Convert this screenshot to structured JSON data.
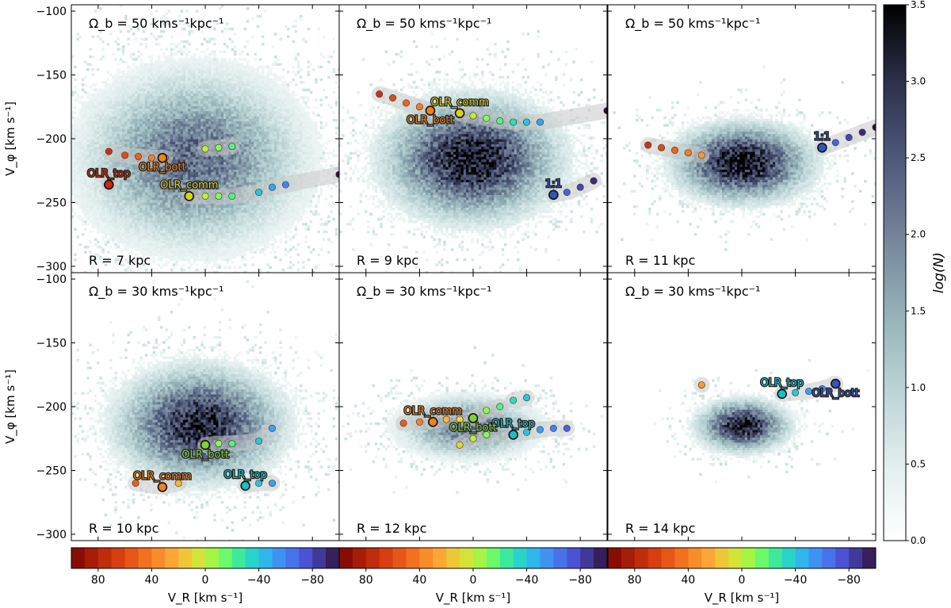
{
  "chart_data": {
    "type": "scatter",
    "layout": "2x3 grid of 2D velocity histograms with resonance-tracking markers",
    "x_axis": {
      "label": "V_R [km s⁻¹]",
      "range": [
        100,
        -100
      ],
      "ticks": [
        80,
        40,
        0,
        -40,
        -80
      ],
      "tick_labels": [
        "80",
        "40",
        "0",
        "−40",
        "−80"
      ]
    },
    "y_axis": {
      "label": "V_φ [km s⁻¹]",
      "range": [
        -95,
        -305
      ],
      "ticks": [
        -300,
        -250,
        -200,
        -150,
        -100
      ],
      "tick_labels": [
        "−300",
        "−250",
        "−200",
        "−150",
        "−100"
      ]
    },
    "colorbar": {
      "label": "log(N)",
      "range": [
        0,
        3.5
      ],
      "ticks": [
        0.0,
        0.5,
        1.0,
        1.5,
        2.0,
        2.5,
        3.0,
        3.5
      ],
      "tick_labels": [
        "0.0",
        "0.5",
        "1.0",
        "1.5",
        "2.0",
        "2.5",
        "3.0",
        "3.5"
      ],
      "colormap": "bone_r"
    },
    "vr_colorbar": {
      "label": "V_R [km s⁻¹]",
      "range": [
        100,
        -100
      ],
      "tick_labels": [
        "80",
        "40",
        "0",
        "−40",
        "−80"
      ],
      "colormap": "turbo"
    },
    "panels": [
      {
        "title": "Ω_b = 50 kms⁻¹kpc⁻¹",
        "radius_label": "R = 7 kpc",
        "cloud": {
          "vr_center": 10,
          "vphi_center": -215,
          "vr_sigma": 48,
          "vphi_sigma": 40,
          "peak_log_n": 2.3
        },
        "tracks": [
          {
            "vr": [
              72,
              60,
              50,
              40,
              30
            ],
            "vphi": [
              -210,
              -213,
              -214,
              -215,
              -215
            ]
          },
          {
            "vr": [
              12,
              0,
              -10,
              -20,
              -40,
              -50,
              -60,
              -100
            ],
            "vphi": [
              -245,
              -245,
              -245,
              -245,
              -242,
              -238,
              -236,
              -228
            ]
          },
          {
            "vr": [
              72
            ],
            "vphi": [
              -236
            ]
          },
          {
            "vr": [
              0,
              -10,
              -20
            ],
            "vphi": [
              -208,
              -207,
              -206
            ]
          }
        ],
        "labels": [
          {
            "text": "OLR_top",
            "vr": 72,
            "vphi": -236,
            "color": "#c72c0c"
          },
          {
            "text": "OLR_comm",
            "vr": 12,
            "vphi": -245,
            "color": "#d7d21a"
          },
          {
            "text": "OLR_bott",
            "vr": 32,
            "vphi": -215,
            "color": "#f08218"
          }
        ]
      },
      {
        "title": "Ω_b = 50 kms⁻¹kpc⁻¹",
        "radius_label": "R = 9 kpc",
        "cloud": {
          "vr_center": 2,
          "vphi_center": -215,
          "vr_sigma": 38,
          "vphi_sigma": 28,
          "peak_log_n": 3.4
        },
        "tracks": [
          {
            "vr": [
              70,
              60,
              50,
              40,
              32
            ],
            "vphi": [
              -165,
              -168,
              -172,
              -175,
              -178
            ]
          },
          {
            "vr": [
              10,
              0,
              -10,
              -20,
              -30,
              -40,
              -50,
              -100
            ],
            "vphi": [
              -180,
              -182,
              -184,
              -186,
              -187,
              -187,
              -187,
              -178
            ]
          },
          {
            "vr": [
              -60,
              -70,
              -80,
              -90
            ],
            "vphi": [
              -244,
              -242,
              -238,
              -233
            ]
          }
        ],
        "labels": [
          {
            "text": "1:1",
            "vr": -60,
            "vphi": -244,
            "color": "#3355bb"
          },
          {
            "text": "OLR_comm",
            "vr": 10,
            "vphi": -180,
            "color": "#d7d21a"
          },
          {
            "text": "OLR_bott",
            "vr": 32,
            "vphi": -178,
            "color": "#f08218"
          }
        ]
      },
      {
        "title": "Ω_b = 50 kms⁻¹kpc⁻¹",
        "radius_label": "R = 11 kpc",
        "cloud": {
          "vr_center": 0,
          "vphi_center": -218,
          "vr_sigma": 30,
          "vphi_sigma": 18,
          "peak_log_n": 3.5
        },
        "tracks": [
          {
            "vr": [
              70,
              60,
              50,
              40,
              30
            ],
            "vphi": [
              -205,
              -207,
              -209,
              -211,
              -213
            ]
          },
          {
            "vr": [
              -60,
              -70,
              -80,
              -90,
              -100
            ],
            "vphi": [
              -207,
              -203,
              -199,
              -195,
              -191
            ]
          }
        ],
        "labels": [
          {
            "text": "1:1",
            "vr": -60,
            "vphi": -207,
            "color": "#3355bb"
          }
        ]
      },
      {
        "title": "Ω_b = 30 kms⁻¹kpc⁻¹",
        "radius_label": "R = 10 kpc",
        "cloud": {
          "vr_center": 5,
          "vphi_center": -213,
          "vr_sigma": 36,
          "vphi_sigma": 26,
          "peak_log_n": 3.2
        },
        "tracks": [
          {
            "vr": [
              52,
              32,
              20
            ],
            "vphi": [
              -260,
              -263,
              -260
            ]
          },
          {
            "vr": [
              -30,
              -40,
              -50
            ],
            "vphi": [
              -262,
              -260,
              -260
            ]
          },
          {
            "vr": [
              0,
              -10,
              -20,
              -40,
              -50
            ],
            "vphi": [
              -230,
              -229,
              -229,
              -227,
              -217
            ]
          }
        ],
        "labels": [
          {
            "text": "OLR_comm",
            "vr": 32,
            "vphi": -263,
            "color": "#f08218"
          },
          {
            "text": "OLR_top",
            "vr": -30,
            "vphi": -262,
            "color": "#18c0c8"
          },
          {
            "text": "OLR_bott",
            "vr": 0,
            "vphi": -230,
            "color": "#7cd43a"
          }
        ]
      },
      {
        "title": "Ω_b = 30 kms⁻¹kpc⁻¹",
        "radius_label": "R = 12 kpc",
        "cloud": {
          "vr_center": 5,
          "vphi_center": -215,
          "vr_sigma": 30,
          "vphi_sigma": 14,
          "peak_log_n": 2.2
        },
        "tracks": [
          {
            "vr": [
              52,
              40,
              30,
              20,
              10
            ],
            "vphi": [
              -213,
              -212,
              -211,
              -210,
              -210
            ]
          },
          {
            "vr": [
              0,
              -10,
              -20
            ],
            "vphi": [
              -209,
              -203,
              -200
            ]
          },
          {
            "vr": [
              10,
              0,
              -10,
              -30,
              -40,
              -50,
              -60,
              -70
            ],
            "vphi": [
              -230,
              -225,
              -222,
              -222,
              -220,
              -218,
              -217,
              -217
            ]
          },
          {
            "vr": [
              -30,
              -40
            ],
            "vphi": [
              -195,
              -193
            ]
          }
        ],
        "labels": [
          {
            "text": "OLR_comm",
            "vr": 30,
            "vphi": -212,
            "color": "#f08218"
          },
          {
            "text": "OLR_top",
            "vr": -30,
            "vphi": -222,
            "color": "#18c0c8"
          },
          {
            "text": "OLR_bott",
            "vr": 0,
            "vphi": -209,
            "color": "#7cd43a"
          }
        ]
      },
      {
        "title": "Ω_b = 30 kms⁻¹kpc⁻¹",
        "radius_label": "R = 14 kpc",
        "cloud": {
          "vr_center": 0,
          "vphi_center": -214,
          "vr_sigma": 20,
          "vphi_sigma": 12,
          "peak_log_n": 3.3
        },
        "tracks": [
          {
            "vr": [
              30
            ],
            "vphi": [
              -183
            ]
          },
          {
            "vr": [
              -30,
              -40,
              -50,
              -60,
              -70
            ],
            "vphi": [
              -190,
              -189,
              -188,
              -186,
              -182
            ]
          }
        ],
        "labels": [
          {
            "text": "OLR_top",
            "vr": -30,
            "vphi": -190,
            "color": "#18c0c8"
          },
          {
            "text": "OLR_bott",
            "vr": -70,
            "vphi": -182,
            "color": "#3355bb"
          }
        ]
      }
    ]
  }
}
